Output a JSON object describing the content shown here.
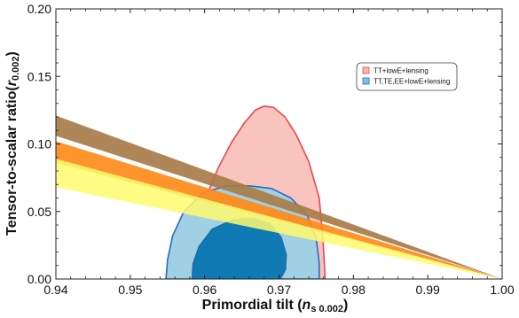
{
  "chart_data": {
    "type": "contour",
    "xlabel": "Primordial tilt (",
    "xlabel_var": "n",
    "xlabel_sub": "s 0.002",
    "xlabel_close": ")",
    "ylabel": "Tensor-to-scalar ratio(",
    "ylabel_var": "r",
    "ylabel_sub": "0.002",
    "ylabel_close": ")",
    "xlim": [
      0.94,
      1.0
    ],
    "ylim": [
      0.0,
      0.2
    ],
    "x_ticks": [
      0.94,
      0.95,
      0.96,
      0.97,
      0.98,
      0.99,
      1.0
    ],
    "x_tick_labels": [
      "0.94",
      "0.95",
      "0.96",
      "0.97",
      "0.98",
      "0.99",
      "1.00"
    ],
    "y_ticks": [
      0.0,
      0.05,
      0.1,
      0.15,
      0.2
    ],
    "y_tick_labels": [
      "0.00",
      "0.05",
      "0.10",
      "0.15",
      "0.20"
    ],
    "legend_position": "upper-right",
    "legend": [
      {
        "label": "TT+lowE+lensing",
        "color": "#f7b4ad",
        "edge": "#e8474a"
      },
      {
        "label": "TT,TE,EE+lowE+lensing",
        "color": "#7ec3dc",
        "edge": "#2f66c0"
      }
    ],
    "contours": [
      {
        "series": "TT+lowE+lensing",
        "level": "95%",
        "fill": "#f9c4bd",
        "stroke": "#e8474a",
        "points": [
          [
            0.9587,
            0.0
          ],
          [
            0.9588,
            0.02
          ],
          [
            0.9592,
            0.04
          ],
          [
            0.9603,
            0.062
          ],
          [
            0.9618,
            0.082
          ],
          [
            0.9636,
            0.101
          ],
          [
            0.9654,
            0.116
          ],
          [
            0.9668,
            0.125
          ],
          [
            0.968,
            0.128
          ],
          [
            0.9693,
            0.127
          ],
          [
            0.9708,
            0.12
          ],
          [
            0.9723,
            0.107
          ],
          [
            0.974,
            0.087
          ],
          [
            0.9754,
            0.06
          ],
          [
            0.9759,
            0.03
          ],
          [
            0.9762,
            0.0
          ]
        ]
      },
      {
        "series": "TT,TE,EE+lowE+lensing",
        "level": "95%",
        "fill": "#9fd0e3",
        "stroke": "#2f66c0",
        "points": [
          [
            0.9548,
            0.0
          ],
          [
            0.955,
            0.014
          ],
          [
            0.9557,
            0.032
          ],
          [
            0.9572,
            0.05
          ],
          [
            0.9598,
            0.064
          ],
          [
            0.963,
            0.069
          ],
          [
            0.966,
            0.069
          ],
          [
            0.969,
            0.067
          ],
          [
            0.9716,
            0.06
          ],
          [
            0.9738,
            0.047
          ],
          [
            0.975,
            0.03
          ],
          [
            0.9754,
            0.012
          ],
          [
            0.9754,
            0.0
          ]
        ]
      },
      {
        "series": "TT,TE,EE+lowE+lensing",
        "level": "68%",
        "fill": "#0f7ab3",
        "stroke": "#1f5ea0",
        "points": [
          [
            0.9583,
            0.0
          ],
          [
            0.9584,
            0.011
          ],
          [
            0.9592,
            0.024
          ],
          [
            0.961,
            0.037
          ],
          [
            0.9638,
            0.044
          ],
          [
            0.9665,
            0.045
          ],
          [
            0.9688,
            0.041
          ],
          [
            0.9703,
            0.031
          ],
          [
            0.971,
            0.018
          ],
          [
            0.9709,
            0.007
          ],
          [
            0.9702,
            0.0
          ]
        ]
      }
    ],
    "bands": [
      {
        "color": "#a87c49",
        "upper": [
          [
            0.94,
            0.121
          ],
          [
            1.0,
            0.0
          ]
        ],
        "lower": [
          [
            0.94,
            0.106
          ],
          [
            1.0,
            0.0
          ]
        ]
      },
      {
        "color": "#ff8a1a",
        "upper": [
          [
            0.94,
            0.102
          ],
          [
            1.0,
            0.0
          ]
        ],
        "lower": [
          [
            0.94,
            0.086
          ],
          [
            1.0,
            0.0
          ]
        ]
      },
      {
        "color": "#fffb6e",
        "upper": [
          [
            0.94,
            0.089
          ],
          [
            1.0,
            0.0
          ]
        ],
        "lower": [
          [
            0.94,
            0.068
          ],
          [
            1.0,
            0.0
          ]
        ]
      }
    ]
  }
}
